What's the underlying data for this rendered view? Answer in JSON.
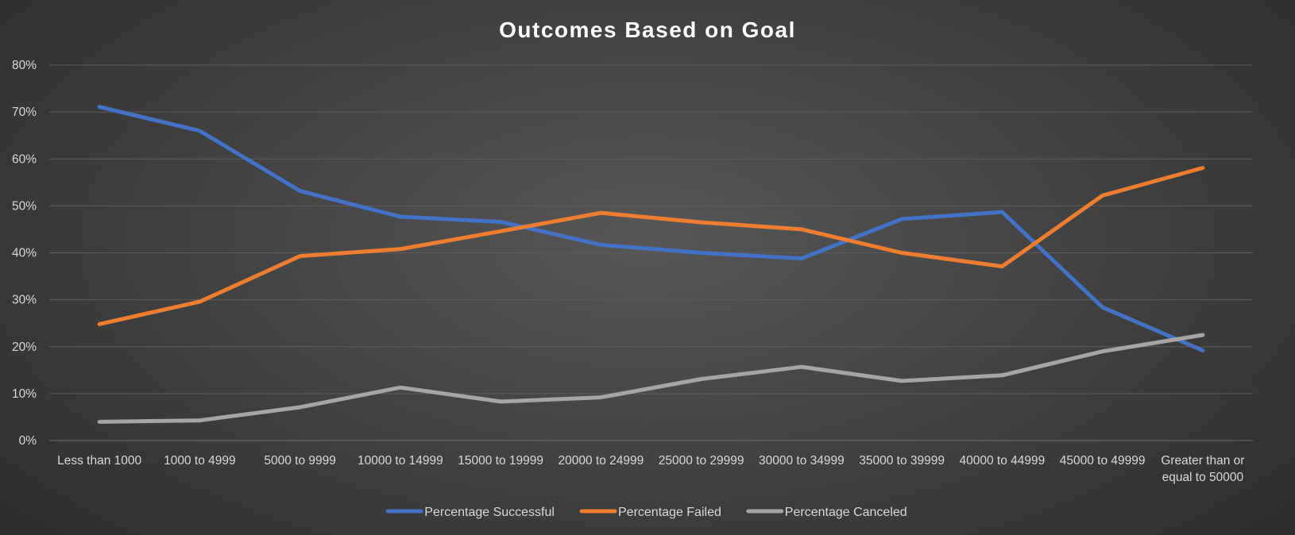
{
  "chart_data": {
    "type": "line",
    "title": "Outcomes Based on Goal",
    "xlabel": "",
    "ylabel": "",
    "ylim": [
      0,
      0.8
    ],
    "yticks": [
      "0%",
      "10%",
      "20%",
      "30%",
      "40%",
      "50%",
      "60%",
      "70%",
      "80%"
    ],
    "grid": true,
    "legend_position": "bottom",
    "categories": [
      "Less than 1000",
      "1000 to 4999",
      "5000 to 9999",
      "10000 to 14999",
      "15000 to 19999",
      "20000 to 24999",
      "25000 to 29999",
      "30000 to 34999",
      "35000 to 39999",
      "40000 to 44999",
      "45000 to 49999",
      "Greater than or equal to 50000"
    ],
    "series": [
      {
        "name": "Percentage Successful",
        "color": "#4472c4",
        "values": [
          0.711,
          0.66,
          0.532,
          0.477,
          0.466,
          0.417,
          0.4,
          0.388,
          0.472,
          0.487,
          0.284,
          0.192
        ]
      },
      {
        "name": "Percentage Failed",
        "color": "#ed7d31",
        "values": [
          0.248,
          0.296,
          0.393,
          0.408,
          0.446,
          0.485,
          0.465,
          0.45,
          0.4,
          0.371,
          0.522,
          0.581
        ]
      },
      {
        "name": "Percentage Canceled",
        "color": "#a5a5a5",
        "values": [
          0.04,
          0.043,
          0.071,
          0.113,
          0.083,
          0.092,
          0.131,
          0.157,
          0.127,
          0.139,
          0.19,
          0.225
        ]
      }
    ]
  }
}
